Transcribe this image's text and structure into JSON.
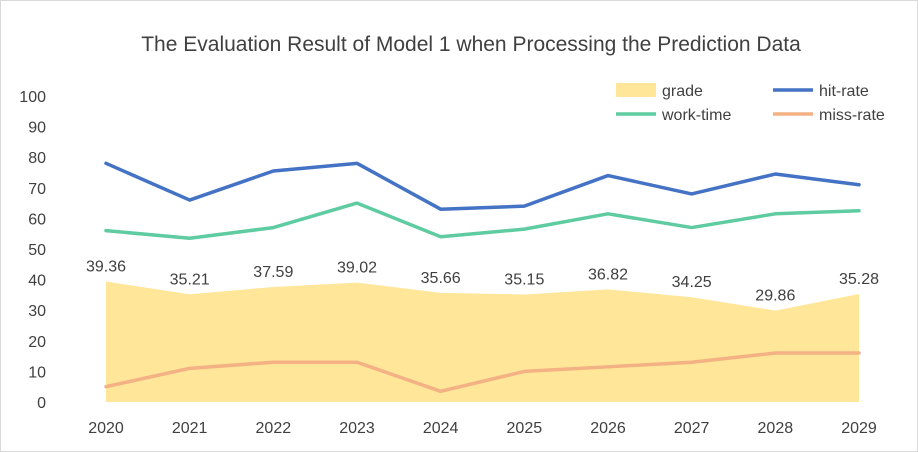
{
  "chart_data": {
    "type": "area",
    "title": "The Evaluation Result of Model 1 when Processing the Prediction Data",
    "categories": [
      "2020",
      "2021",
      "2022",
      "2023",
      "2024",
      "2025",
      "2026",
      "2027",
      "2028",
      "2029"
    ],
    "ylim": [
      0,
      100
    ],
    "yticks": [
      0,
      10,
      20,
      30,
      40,
      50,
      60,
      70,
      80,
      90,
      100
    ],
    "grid": false,
    "legend_position": "top-right",
    "series": [
      {
        "name": "grade",
        "type": "area",
        "color": "#FFE699",
        "values": [
          39.36,
          35.21,
          37.59,
          39.02,
          35.66,
          35.15,
          36.82,
          34.25,
          29.86,
          35.28
        ],
        "data_labels": [
          "39.36",
          "35.21",
          "37.59",
          "39.02",
          "35.66",
          "35.15",
          "36.82",
          "34.25",
          "29.86",
          "35.28"
        ]
      },
      {
        "name": "hit-rate",
        "type": "line",
        "color": "#4472C4",
        "values": [
          78,
          66,
          75.5,
          78,
          63,
          64,
          74,
          68,
          74.5,
          71
        ]
      },
      {
        "name": "work-time",
        "type": "line",
        "color": "#5FCBA0",
        "values": [
          56,
          53.5,
          57,
          65,
          54,
          56.5,
          61.5,
          57,
          61.5,
          62.5
        ]
      },
      {
        "name": "miss-rate",
        "type": "line",
        "color": "#F4B183",
        "values": [
          5,
          11,
          13,
          13,
          3.5,
          10,
          11.5,
          13,
          16,
          16
        ]
      }
    ]
  }
}
